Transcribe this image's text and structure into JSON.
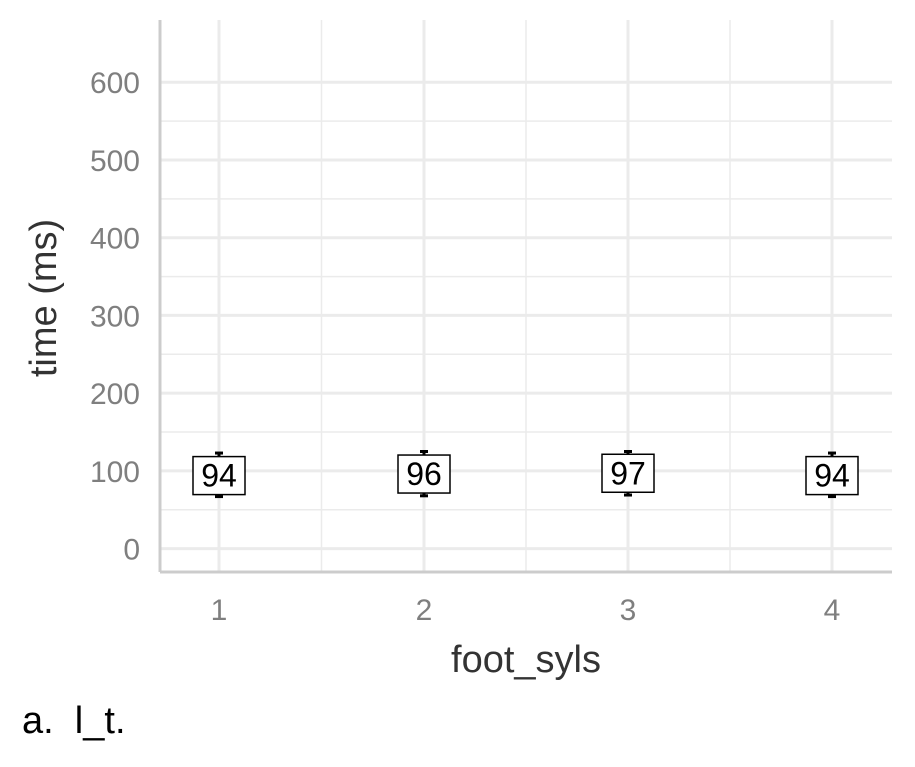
{
  "chart_data": {
    "type": "scatter",
    "xlabel": "foot_syls",
    "ylabel": "time (ms)",
    "categories": [
      "1",
      "2",
      "3",
      "4"
    ],
    "values": [
      94,
      96,
      97,
      94
    ],
    "labels": [
      "94",
      "96",
      "97",
      "94"
    ],
    "error_bars": [
      {
        "low": 67,
        "high": 123
      },
      {
        "low": 68,
        "high": 125
      },
      {
        "low": 69,
        "high": 125
      },
      {
        "low": 67,
        "high": 123
      }
    ],
    "ylim": [
      -30,
      680
    ],
    "y_ticks": [
      "0",
      "100",
      "200",
      "300",
      "400",
      "500",
      "600"
    ],
    "grid": true,
    "colors": {
      "grid": "#ebebeb",
      "axis": "#cccccc",
      "tick_text": "#7f7f7f",
      "title_text": "#333333",
      "marker": "#000000"
    }
  },
  "caption": "a.  l_t."
}
